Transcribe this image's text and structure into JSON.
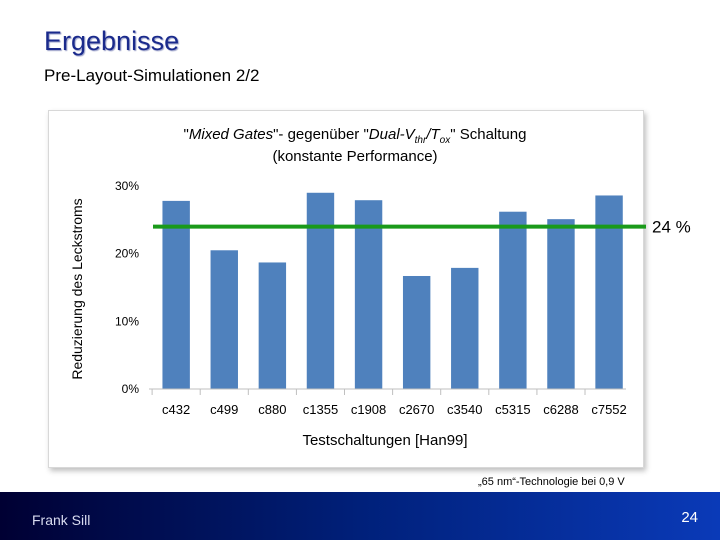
{
  "slide": {
    "title": "Ergebnisse",
    "subtitle": "Pre-Layout-Simulationen 2/2",
    "footnote": "„65 nm“-Technologie bei 0,9 V",
    "author": "Frank Sill",
    "page_number": "24"
  },
  "chart_data": {
    "type": "bar",
    "title_line1_parts": [
      "\"Mixed Gates\"-  gegenüber \"Dual-V",
      "thr",
      "/T",
      "ox",
      "\" Schaltung"
    ],
    "title_line2": "(konstante Performance)",
    "xlabel": "Testschaltungen [Han99]",
    "ylabel": "Reduzierung des Leckstroms",
    "categories": [
      "c432",
      "c499",
      "c880",
      "c1355",
      "c1908",
      "c2670",
      "c3540",
      "c5315",
      "c6288",
      "c7552"
    ],
    "values": [
      27.8,
      20.5,
      18.7,
      29.0,
      27.9,
      16.7,
      17.9,
      26.2,
      25.1,
      28.6
    ],
    "ylim": [
      0,
      30
    ],
    "yticks": [
      "0%",
      "10%",
      "20%",
      "30%"
    ],
    "ytick_values": [
      0,
      10,
      20,
      30
    ],
    "grid": false,
    "bar_color": "#4f81bd",
    "reference_line": {
      "value": 24,
      "label": "24 %",
      "color": "#1a9a1a"
    }
  }
}
